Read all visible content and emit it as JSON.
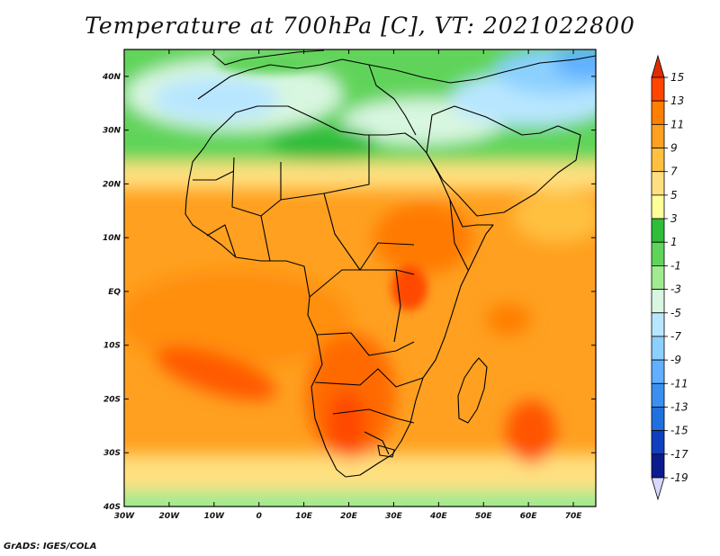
{
  "title": "Temperature at 700hPa [C], VT: 2021022800",
  "footer": "GrADS: IGES/COLA",
  "map": {
    "projection": "lat-lon",
    "lon_range": [
      -30,
      75
    ],
    "lat_range": [
      -40,
      45
    ],
    "lon_ticks": [
      "30W",
      "20W",
      "10W",
      "0",
      "10E",
      "20E",
      "30E",
      "40E",
      "50E",
      "60E",
      "70E"
    ],
    "lat_ticks": [
      "40N",
      "30N",
      "20N",
      "10N",
      "EQ",
      "10S",
      "20S",
      "30S",
      "40S"
    ]
  },
  "colorbar": {
    "labels": [
      "15",
      "13",
      "11",
      "9",
      "7",
      "5",
      "3",
      "1",
      "-1",
      "-3",
      "-5",
      "-7",
      "-9",
      "-11",
      "-13",
      "-15",
      "-17",
      "-19"
    ],
    "colors": [
      "#e02c00",
      "#ff4500",
      "#ff7f00",
      "#ffa020",
      "#ffc040",
      "#ffe080",
      "#ffff99",
      "#2fbd3a",
      "#60d45a",
      "#a0ea90",
      "#d8f6e0",
      "#b8e6ff",
      "#8cd0ff",
      "#60b0ff",
      "#3a90f0",
      "#2070e0",
      "#1040c0",
      "#0a1a90",
      "#d8d8ff"
    ]
  }
}
